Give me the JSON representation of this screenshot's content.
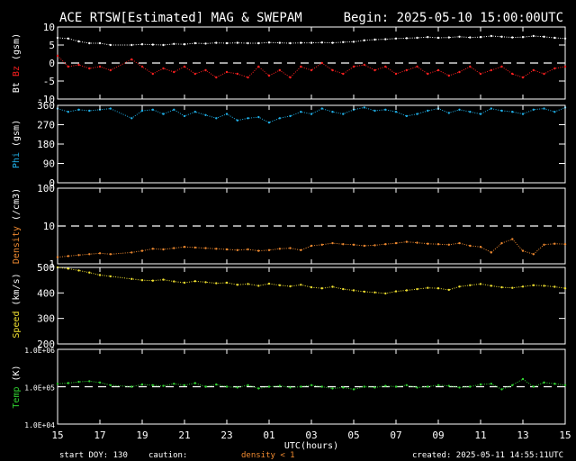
{
  "title": "ACE RTSW[Estimated] MAG & SWEPAM",
  "begin": "Begin: 2025-05-10 15:00:00UTC",
  "footer": {
    "start_doy": "start DOY: 130",
    "caution": "caution:",
    "density_note": "density < 1",
    "created": "created: 2025-05-11 14:55:11UTC"
  },
  "colors": {
    "background": "#000000",
    "frame": "#ffffff",
    "bt": "#ffffff",
    "bz": "#ff2020",
    "phi": "#20b0e8",
    "density": "#f08a30",
    "speed": "#f0e030",
    "temp": "#30d030",
    "caution_note": "#f08a30"
  },
  "chart_data": [
    {
      "type": "scatter",
      "panel": "mag",
      "ylabel_parts": [
        {
          "text": "Bt",
          "color": "#ffffff"
        },
        {
          "text": "Bz",
          "color": "#ff2020"
        },
        {
          "text": "(gsm)",
          "color": "#ffffff"
        }
      ],
      "ylim": [
        -10,
        10
      ],
      "yticks": [
        10,
        5,
        0,
        -5,
        -10
      ],
      "ytick_labels": [
        "10",
        "5",
        "0",
        "-5",
        "-10"
      ],
      "scale": "linear",
      "ref_line": 0,
      "series": [
        {
          "name": "Bt",
          "color": "#ffffff",
          "x": [
            0,
            0.5,
            1,
            1.5,
            2,
            2.5,
            3.5,
            4,
            4.5,
            5,
            5.5,
            6,
            6.5,
            7,
            7.5,
            8,
            8.5,
            9,
            9.5,
            10,
            10.5,
            11,
            11.5,
            12,
            12.5,
            13,
            13.5,
            14,
            14.5,
            15,
            15.5,
            16,
            16.5,
            17,
            17.5,
            18,
            18.5,
            19,
            19.5,
            20,
            20.5,
            21,
            21.5,
            22,
            22.5,
            23,
            23.5,
            24
          ],
          "y": [
            7,
            6.8,
            6,
            5.5,
            5.5,
            5,
            5,
            5.2,
            5.1,
            5,
            5.3,
            5.2,
            5.5,
            5.4,
            5.6,
            5.5,
            5.6,
            5.5,
            5.5,
            5.7,
            5.6,
            5.5,
            5.6,
            5.6,
            5.7,
            5.6,
            5.8,
            5.9,
            6.3,
            6.5,
            6.6,
            6.8,
            6.9,
            7,
            7.2,
            7,
            7.1,
            7.3,
            7.1,
            7.2,
            7.5,
            7.3,
            7.1,
            7.2,
            7.5,
            7.3,
            7,
            6.8
          ]
        },
        {
          "name": "Bz",
          "color": "#ff2020",
          "x": [
            0,
            0.5,
            1,
            1.5,
            2,
            2.5,
            3.5,
            4,
            4.5,
            5,
            5.5,
            6,
            6.5,
            7,
            7.5,
            8,
            8.5,
            9,
            9.5,
            10,
            10.5,
            11,
            11.5,
            12,
            12.5,
            13,
            13.5,
            14,
            14.5,
            15,
            15.5,
            16,
            16.5,
            17,
            17.5,
            18,
            18.5,
            19,
            19.5,
            20,
            20.5,
            21,
            21.5,
            22,
            22.5,
            23,
            23.5,
            24
          ],
          "y": [
            2,
            -1,
            -0.5,
            -1.5,
            -1,
            -2,
            1,
            -1,
            -3,
            -1.5,
            -2.5,
            -1,
            -3,
            -2,
            -4,
            -2.5,
            -3,
            -4,
            -1,
            -3.5,
            -2,
            -4,
            -1,
            -2,
            0,
            -2,
            -3,
            -1,
            -0.5,
            -2,
            -1,
            -3,
            -2,
            -1,
            -3,
            -2,
            -3.5,
            -2.5,
            -1,
            -3,
            -2,
            -1,
            -3,
            -4,
            -2,
            -3,
            -1.5,
            -1
          ]
        }
      ]
    },
    {
      "type": "scatter",
      "panel": "phi",
      "ylabel_parts": [
        {
          "text": "Phi",
          "color": "#20b0e8"
        },
        {
          "text": "(gsm)",
          "color": "#ffffff"
        }
      ],
      "ylim": [
        0,
        360
      ],
      "yticks": [
        360,
        270,
        180,
        90,
        0
      ],
      "ytick_labels": [
        "360",
        "270",
        "180",
        "90",
        "0"
      ],
      "scale": "linear",
      "series": [
        {
          "name": "Phi",
          "color": "#20b0e8",
          "x": [
            0,
            0.5,
            1,
            1.5,
            2,
            2.5,
            3.5,
            4,
            4.5,
            5,
            5.5,
            6,
            6.5,
            7,
            7.5,
            8,
            8.5,
            9,
            9.5,
            10,
            10.5,
            11,
            11.5,
            12,
            12.5,
            13,
            13.5,
            14,
            14.5,
            15,
            15.5,
            16,
            16.5,
            17,
            17.5,
            18,
            18.5,
            19,
            19.5,
            20,
            20.5,
            21,
            21.5,
            22,
            22.5,
            23,
            23.5,
            24
          ],
          "y": [
            345,
            330,
            340,
            335,
            340,
            345,
            300,
            335,
            340,
            320,
            340,
            310,
            330,
            315,
            300,
            320,
            290,
            300,
            305,
            280,
            300,
            310,
            330,
            320,
            345,
            330,
            320,
            340,
            350,
            335,
            340,
            330,
            310,
            320,
            335,
            345,
            325,
            340,
            330,
            320,
            345,
            335,
            330,
            320,
            340,
            345,
            330,
            350
          ]
        }
      ]
    },
    {
      "type": "scatter",
      "panel": "density",
      "ylabel_parts": [
        {
          "text": "Density",
          "color": "#f08a30"
        },
        {
          "text": "(/cm3)",
          "color": "#ffffff"
        }
      ],
      "ylim": [
        1,
        100
      ],
      "yticks": [
        100,
        10,
        1
      ],
      "ytick_labels": [
        "100",
        "10",
        "1"
      ],
      "scale": "log",
      "ref_line": 10,
      "series": [
        {
          "name": "Density",
          "color": "#f08a30",
          "x": [
            0,
            0.5,
            1,
            1.5,
            2,
            2.5,
            3.5,
            4,
            4.5,
            5,
            5.5,
            6,
            6.5,
            7,
            7.5,
            8,
            8.5,
            9,
            9.5,
            10,
            10.5,
            11,
            11.5,
            12,
            12.5,
            13,
            13.5,
            14,
            14.5,
            15,
            15.5,
            16,
            16.5,
            17,
            17.5,
            18,
            18.5,
            19,
            19.5,
            20,
            20.5,
            21,
            21.5,
            22,
            22.5,
            23,
            23.5,
            24
          ],
          "y": [
            1.5,
            1.6,
            1.7,
            1.8,
            1.9,
            1.8,
            2,
            2.2,
            2.5,
            2.4,
            2.6,
            2.8,
            2.7,
            2.6,
            2.5,
            2.4,
            2.3,
            2.4,
            2.2,
            2.3,
            2.5,
            2.6,
            2.3,
            3,
            3.2,
            3.5,
            3.3,
            3.2,
            3.0,
            3.1,
            3.3,
            3.5,
            3.8,
            3.6,
            3.4,
            3.3,
            3.2,
            3.5,
            3.0,
            2.8,
            2.0,
            3.5,
            4.5,
            2.2,
            1.8,
            3.2,
            3.4,
            3.3
          ]
        }
      ]
    },
    {
      "type": "scatter",
      "panel": "speed",
      "ylabel_parts": [
        {
          "text": "Speed",
          "color": "#f0e030"
        },
        {
          "text": "(km/s)",
          "color": "#ffffff"
        }
      ],
      "ylim": [
        200,
        500
      ],
      "yticks": [
        500,
        400,
        300,
        200
      ],
      "ytick_labels": [
        "500",
        "400",
        "300",
        "200"
      ],
      "scale": "linear",
      "series": [
        {
          "name": "Speed",
          "color": "#f0e030",
          "x": [
            0,
            0.5,
            1,
            1.5,
            2,
            2.5,
            3.5,
            4,
            4.5,
            5,
            5.5,
            6,
            6.5,
            7,
            7.5,
            8,
            8.5,
            9,
            9.5,
            10,
            10.5,
            11,
            11.5,
            12,
            12.5,
            13,
            13.5,
            14,
            14.5,
            15,
            15.5,
            16,
            16.5,
            17,
            17.5,
            18,
            18.5,
            19,
            19.5,
            20,
            20.5,
            21,
            21.5,
            22,
            22.5,
            23,
            23.5,
            24
          ],
          "y": [
            500,
            495,
            488,
            480,
            470,
            465,
            455,
            450,
            448,
            452,
            445,
            440,
            446,
            442,
            438,
            440,
            432,
            435,
            428,
            436,
            430,
            426,
            432,
            422,
            418,
            424,
            415,
            410,
            405,
            402,
            398,
            406,
            410,
            415,
            420,
            418,
            412,
            425,
            430,
            435,
            428,
            422,
            420,
            425,
            430,
            428,
            424,
            418
          ]
        }
      ]
    },
    {
      "type": "scatter",
      "panel": "temp",
      "ylabel_parts": [
        {
          "text": "Temp",
          "color": "#30d030"
        },
        {
          "text": "(K)",
          "color": "#ffffff"
        }
      ],
      "ylim": [
        10000,
        1000000
      ],
      "yticks": [
        1000000,
        100000,
        10000
      ],
      "ytick_labels": [
        "1.0E+06",
        "1.0E+05",
        "1.0E+04"
      ],
      "scale": "log",
      "ref_line": 100000,
      "series": [
        {
          "name": "Temp",
          "color": "#30d030",
          "x": [
            0,
            0.5,
            1,
            1.5,
            2,
            2.5,
            3.5,
            4,
            4.5,
            5,
            5.5,
            6,
            6.5,
            7,
            7.5,
            8,
            8.5,
            9,
            9.5,
            10,
            10.5,
            11,
            11.5,
            12,
            12.5,
            13,
            13.5,
            14,
            14.5,
            15,
            15.5,
            16,
            16.5,
            17,
            17.5,
            18,
            18.5,
            19,
            19.5,
            20,
            20.5,
            21,
            21.5,
            22,
            22.5,
            23,
            23.5,
            24
          ],
          "y": [
            120000,
            125000,
            135000,
            140000,
            130000,
            110000,
            100000,
            115000,
            110000,
            105000,
            120000,
            110000,
            125000,
            100000,
            115000,
            100000,
            95000,
            110000,
            90000,
            100000,
            105000,
            95000,
            100000,
            110000,
            100000,
            90000,
            95000,
            85000,
            100000,
            95000,
            105000,
            100000,
            110000,
            95000,
            100000,
            110000,
            105000,
            95000,
            100000,
            115000,
            120000,
            85000,
            110000,
            160000,
            100000,
            130000,
            120000,
            110000
          ]
        }
      ]
    },
    {
      "type": "axis",
      "panel": "time",
      "xlim": [
        0,
        24
      ],
      "xticks": [
        0,
        2,
        4,
        6,
        8,
        10,
        12,
        14,
        16,
        18,
        20,
        22,
        24
      ],
      "xtick_labels": [
        "15",
        "17",
        "19",
        "21",
        "23",
        "01",
        "03",
        "05",
        "07",
        "09",
        "11",
        "13",
        "15"
      ],
      "xlabel": "UTC(hours)"
    }
  ]
}
